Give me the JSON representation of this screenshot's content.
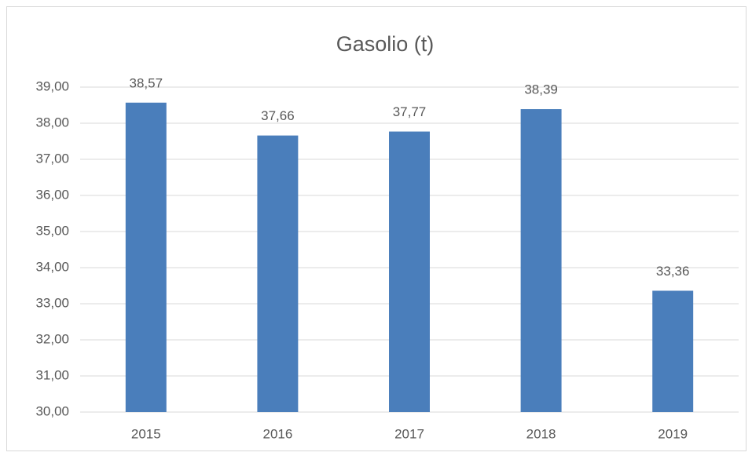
{
  "chart_data": {
    "type": "bar",
    "title": "Gasolio (t)",
    "categories": [
      "2015",
      "2016",
      "2017",
      "2018",
      "2019"
    ],
    "values": [
      38.57,
      37.66,
      37.77,
      38.39,
      33.36
    ],
    "value_labels": [
      "38,57",
      "37,66",
      "37,77",
      "38,39",
      "33,36"
    ],
    "color": "#4a7ebb",
    "ylim": [
      30,
      39
    ],
    "yticks": [
      {
        "value": 30,
        "label": "30,00"
      },
      {
        "value": 31,
        "label": "31,00"
      },
      {
        "value": 32,
        "label": "32,00"
      },
      {
        "value": 33,
        "label": "33,00"
      },
      {
        "value": 34,
        "label": "34,00"
      },
      {
        "value": 35,
        "label": "35,00"
      },
      {
        "value": 36,
        "label": "36,00"
      },
      {
        "value": 37,
        "label": "37,00"
      },
      {
        "value": 38,
        "label": "38,00"
      },
      {
        "value": 39,
        "label": "39,00"
      }
    ],
    "grid": true
  }
}
